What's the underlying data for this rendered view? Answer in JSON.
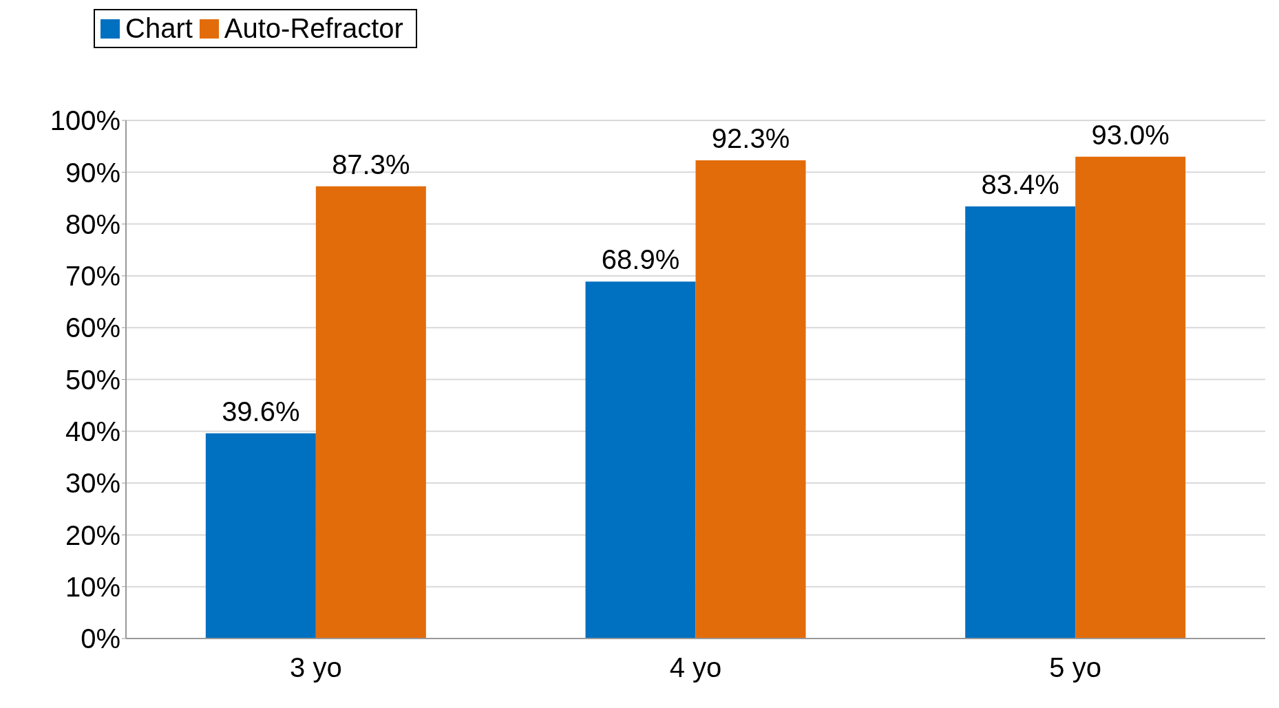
{
  "chart_data": {
    "type": "bar",
    "categories": [
      "3 yo",
      "4 yo",
      "5 yo"
    ],
    "series": [
      {
        "name": "Chart",
        "color": "#0070c0",
        "values": [
          39.6,
          68.9,
          83.4
        ],
        "value_labels": [
          "39.6%",
          "68.9%",
          "83.4%"
        ]
      },
      {
        "name": "Auto-Refractor",
        "color": "#e36c0a",
        "values": [
          87.3,
          92.3,
          93.0
        ],
        "value_labels": [
          "87.3%",
          "92.3%",
          "93.0%"
        ]
      }
    ],
    "ylim": [
      0,
      100
    ],
    "yticks": [
      {
        "value": 0,
        "label": "0%"
      },
      {
        "value": 10,
        "label": "10%"
      },
      {
        "value": 20,
        "label": "20%"
      },
      {
        "value": 30,
        "label": "30%"
      },
      {
        "value": 40,
        "label": "40%"
      },
      {
        "value": 50,
        "label": "50%"
      },
      {
        "value": 60,
        "label": "60%"
      },
      {
        "value": 70,
        "label": "70%"
      },
      {
        "value": 80,
        "label": "80%"
      },
      {
        "value": 90,
        "label": "90%"
      },
      {
        "value": 100,
        "label": "100%"
      }
    ],
    "grid": "y",
    "legend": "top left"
  }
}
